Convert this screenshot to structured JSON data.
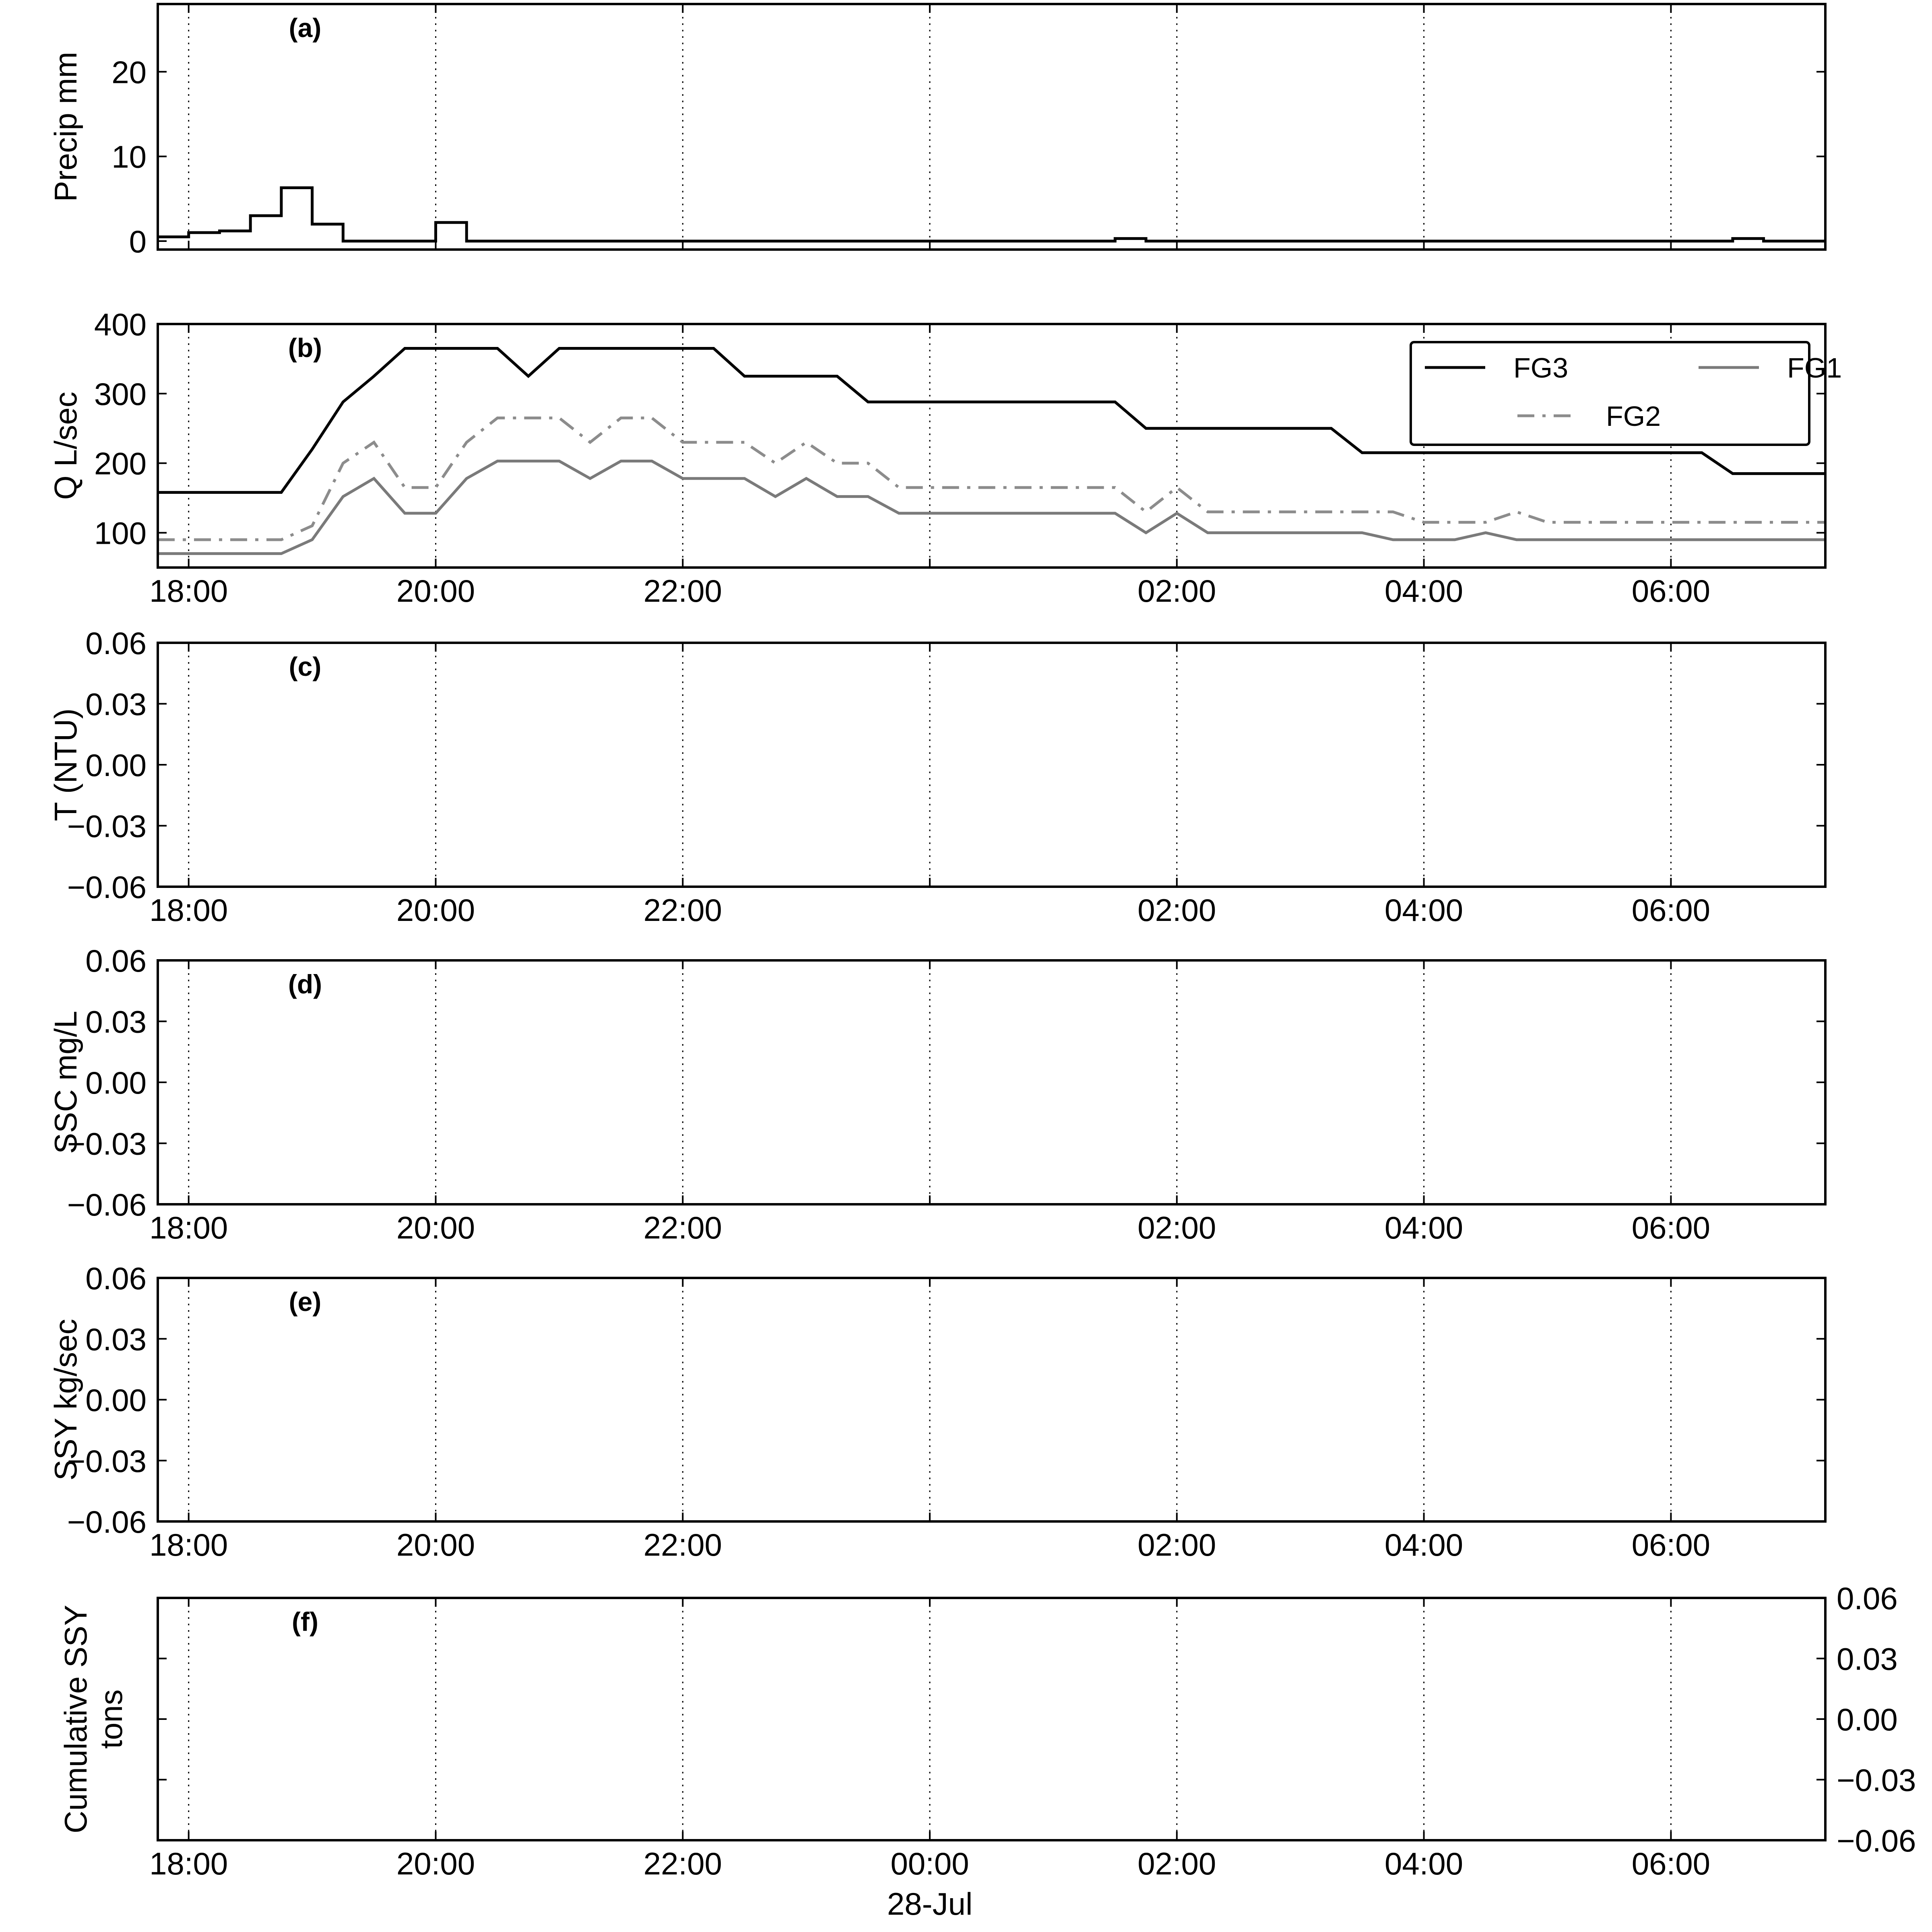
{
  "chart_data": [
    {
      "panel": "a",
      "panel_label": "(a)",
      "type": "line",
      "step": true,
      "ylabel": "Precip mm",
      "ylim": [
        -1,
        28
      ],
      "yticks": [
        "0",
        "10",
        "20"
      ],
      "xticks": [
        "18:00",
        "20:00",
        "22:00",
        "00:00",
        "02:00",
        "04:00",
        "06:00"
      ],
      "xtick_labels_shown": false,
      "grid": "vertical dotted at each 2h tick",
      "series": [
        {
          "color": "#000000",
          "style": "solid",
          "x": [
            "17:45",
            "18:00",
            "18:15",
            "18:30",
            "18:45",
            "19:00",
            "19:15",
            "19:30",
            "19:45",
            "20:00",
            "20:15",
            "20:30",
            "20:45",
            "21:00",
            "21:15",
            "21:30",
            "21:45",
            "22:00",
            "22:15",
            "22:30",
            "22:45",
            "23:00",
            "23:15",
            "23:30",
            "23:45",
            "00:00",
            "00:15",
            "00:30",
            "00:45",
            "01:00",
            "01:15",
            "01:30",
            "01:45",
            "02:00",
            "02:15",
            "02:30",
            "02:45",
            "03:00",
            "03:15",
            "03:30",
            "03:45",
            "04:00",
            "04:15",
            "04:30",
            "04:45",
            "05:00",
            "05:15",
            "05:30",
            "05:45",
            "06:00",
            "06:15",
            "06:30",
            "06:45",
            "07:00",
            "07:15"
          ],
          "values": [
            0.5,
            1,
            1.2,
            3,
            6.3,
            2,
            0,
            0,
            0,
            2.2,
            0,
            0,
            0,
            0,
            0,
            0,
            0,
            0,
            0,
            0,
            0,
            0,
            0,
            0,
            0,
            0,
            0,
            0,
            0,
            0,
            0,
            0.3,
            0,
            0,
            0,
            0,
            0,
            0,
            0,
            0,
            0,
            0,
            0,
            0,
            0,
            0,
            0,
            0,
            0,
            0,
            0,
            0.3,
            0,
            0,
            0
          ]
        }
      ]
    },
    {
      "panel": "b",
      "panel_label": "(b)",
      "type": "line",
      "ylabel": "Q L/sec",
      "ylim": [
        50,
        400
      ],
      "yticks": [
        "100",
        "200",
        "300",
        "400"
      ],
      "xticks": [
        "18:00",
        "20:00",
        "22:00",
        "",
        "02:00",
        "04:00",
        "06:00"
      ],
      "grid": "vertical dotted at each 2h tick",
      "legend": "top-right, 2 columns",
      "series": [
        {
          "name": "FG3",
          "color": "#000000",
          "style": "solid",
          "x": [
            "17:45",
            "18:45",
            "19:00",
            "19:15",
            "19:30",
            "19:45",
            "20:00",
            "20:15",
            "20:30",
            "20:45",
            "21:00",
            "21:15",
            "21:30",
            "21:45",
            "22:00",
            "22:15",
            "22:30",
            "22:45",
            "23:00",
            "23:15",
            "23:30",
            "23:45",
            "00:00",
            "00:15",
            "00:30",
            "00:45",
            "01:00",
            "01:15",
            "01:30",
            "01:45",
            "02:00",
            "02:15",
            "02:30",
            "02:45",
            "03:00",
            "03:15",
            "03:30",
            "03:45",
            "04:00",
            "04:15",
            "04:30",
            "04:45",
            "05:00",
            "05:15",
            "05:30",
            "05:45",
            "06:00",
            "06:15",
            "06:30",
            "06:45",
            "07:00",
            "07:15"
          ],
          "values": [
            158,
            158,
            220,
            288,
            325,
            365,
            365,
            365,
            365,
            325,
            365,
            365,
            365,
            365,
            365,
            365,
            325,
            325,
            325,
            325,
            288,
            288,
            288,
            288,
            288,
            288,
            288,
            288,
            288,
            250,
            250,
            250,
            250,
            250,
            250,
            250,
            215,
            215,
            215,
            215,
            215,
            215,
            215,
            215,
            215,
            215,
            215,
            215,
            185,
            185,
            185,
            185
          ]
        },
        {
          "name": "FG2",
          "color": "#8c8c8c",
          "style": "dash-dot",
          "x": [
            "17:45",
            "18:45",
            "19:00",
            "19:15",
            "19:30",
            "19:45",
            "20:00",
            "20:15",
            "20:30",
            "20:45",
            "21:00",
            "21:15",
            "21:30",
            "21:45",
            "22:00",
            "22:15",
            "22:30",
            "22:45",
            "23:00",
            "23:15",
            "23:30",
            "23:45",
            "00:00",
            "00:15",
            "00:30",
            "00:45",
            "01:00",
            "01:15",
            "01:30",
            "01:45",
            "02:00",
            "02:15",
            "02:30",
            "02:45",
            "03:00",
            "03:15",
            "03:30",
            "03:45",
            "04:00",
            "04:15",
            "04:30",
            "04:45",
            "05:00",
            "05:15",
            "05:30",
            "05:45",
            "06:00",
            "06:15",
            "06:30",
            "06:45",
            "07:00",
            "07:15"
          ],
          "values": [
            90,
            90,
            110,
            200,
            230,
            165,
            165,
            230,
            265,
            265,
            265,
            230,
            265,
            265,
            230,
            230,
            230,
            200,
            230,
            200,
            200,
            165,
            165,
            165,
            165,
            165,
            165,
            165,
            165,
            130,
            165,
            130,
            130,
            130,
            130,
            130,
            130,
            130,
            115,
            115,
            115,
            130,
            115,
            115,
            115,
            115,
            115,
            115,
            115,
            115,
            115,
            115
          ]
        },
        {
          "name": "FG1",
          "color": "#7a7a7a",
          "style": "solid",
          "x": [
            "17:45",
            "18:45",
            "19:00",
            "19:15",
            "19:30",
            "19:45",
            "20:00",
            "20:15",
            "20:30",
            "20:45",
            "21:00",
            "21:15",
            "21:30",
            "21:45",
            "22:00",
            "22:15",
            "22:30",
            "22:45",
            "23:00",
            "23:15",
            "23:30",
            "23:45",
            "00:00",
            "00:15",
            "00:30",
            "00:45",
            "01:00",
            "01:15",
            "01:30",
            "01:45",
            "02:00",
            "02:15",
            "02:30",
            "02:45",
            "03:00",
            "03:15",
            "03:30",
            "03:45",
            "04:00",
            "04:15",
            "04:30",
            "04:45",
            "05:00",
            "05:15",
            "05:30",
            "05:45",
            "06:00",
            "06:15",
            "06:30",
            "06:45",
            "07:00",
            "07:15"
          ],
          "values": [
            70,
            70,
            90,
            152,
            178,
            128,
            128,
            178,
            203,
            203,
            203,
            178,
            203,
            203,
            178,
            178,
            178,
            152,
            178,
            152,
            152,
            128,
            128,
            128,
            128,
            128,
            128,
            128,
            128,
            100,
            128,
            100,
            100,
            100,
            100,
            100,
            100,
            90,
            90,
            90,
            100,
            90,
            90,
            90,
            90,
            90,
            90,
            90,
            90,
            90,
            90,
            90
          ]
        }
      ]
    },
    {
      "panel": "c",
      "panel_label": "(c)",
      "type": "line",
      "ylabel": "T (NTU)",
      "ylim": [
        -0.06,
        0.06
      ],
      "yticks": [
        "−0.06",
        "−0.03",
        "0.00",
        "0.03",
        "0.06"
      ],
      "xticks": [
        "18:00",
        "20:00",
        "22:00",
        "",
        "02:00",
        "04:00",
        "06:00"
      ],
      "grid": "vertical dotted at each 2h tick",
      "series": []
    },
    {
      "panel": "d",
      "panel_label": "(d)",
      "type": "line",
      "ylabel": "SSC mg/L",
      "ylim": [
        -0.06,
        0.06
      ],
      "yticks": [
        "−0.06",
        "−0.03",
        "0.00",
        "0.03",
        "0.06"
      ],
      "xticks": [
        "18:00",
        "20:00",
        "22:00",
        "",
        "02:00",
        "04:00",
        "06:00"
      ],
      "grid": "vertical dotted at each 2h tick",
      "series": []
    },
    {
      "panel": "e",
      "panel_label": "(e)",
      "type": "line",
      "ylabel": "SSY kg/sec",
      "ylim": [
        -0.06,
        0.06
      ],
      "yticks": [
        "−0.06",
        "−0.03",
        "0.00",
        "0.03",
        "0.06"
      ],
      "xticks": [
        "18:00",
        "20:00",
        "22:00",
        "",
        "02:00",
        "04:00",
        "06:00"
      ],
      "grid": "vertical dotted at each 2h tick",
      "series": []
    },
    {
      "panel": "f",
      "panel_label": "(f)",
      "type": "line",
      "ylabel": [
        "Cumulative SSY",
        "tons"
      ],
      "ylim": [
        -0.06,
        0.06
      ],
      "yaxis_side": "right",
      "yticks": [
        "−0.06",
        "−0.03",
        "0.00",
        "0.03",
        "0.06"
      ],
      "xticks": [
        "18:00",
        "20:00",
        "22:00",
        "00:00",
        "02:00",
        "04:00",
        "06:00"
      ],
      "xdate_label": "28-Jul",
      "grid": "vertical dotted at each 2h tick",
      "series": []
    }
  ]
}
